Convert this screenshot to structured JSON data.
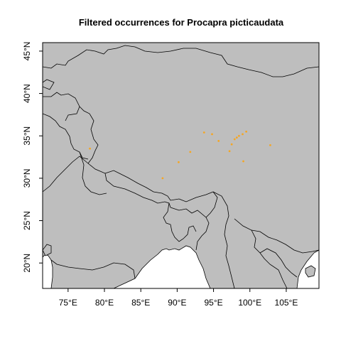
{
  "title": "Filtered occurrences for Procapra picticaudata",
  "colors": {
    "land": "#bebebe",
    "sea": "#ffffff",
    "border": "#000000",
    "points": "#f5a623"
  },
  "chart_data": {
    "type": "scatter",
    "title": "Filtered occurrences for Procapra picticaudata",
    "xlabel": "",
    "ylabel": "",
    "xlim": [
      71.5,
      109.5
    ],
    "ylim": [
      17,
      46
    ],
    "x_ticks": [
      {
        "value": 75,
        "label": "75°E"
      },
      {
        "value": 80,
        "label": "80°E"
      },
      {
        "value": 85,
        "label": "85°E"
      },
      {
        "value": 90,
        "label": "90°E"
      },
      {
        "value": 95,
        "label": "95°E"
      },
      {
        "value": 100,
        "label": "100°E"
      },
      {
        "value": 105,
        "label": "105°E"
      }
    ],
    "y_ticks": [
      {
        "value": 20,
        "label": "20°N"
      },
      {
        "value": 25,
        "label": "25°N"
      },
      {
        "value": 30,
        "label": "30°N"
      },
      {
        "value": 35,
        "label": "35°N"
      },
      {
        "value": 40,
        "label": "40°N"
      },
      {
        "value": 45,
        "label": "45°N"
      }
    ],
    "points": [
      {
        "lon": 78.0,
        "lat": 33.5
      },
      {
        "lon": 88.0,
        "lat": 30.0
      },
      {
        "lon": 90.2,
        "lat": 31.9
      },
      {
        "lon": 91.8,
        "lat": 33.1
      },
      {
        "lon": 93.7,
        "lat": 35.4
      },
      {
        "lon": 94.8,
        "lat": 35.2
      },
      {
        "lon": 95.7,
        "lat": 34.4
      },
      {
        "lon": 97.2,
        "lat": 33.2
      },
      {
        "lon": 97.5,
        "lat": 34.0
      },
      {
        "lon": 97.9,
        "lat": 34.6
      },
      {
        "lon": 98.2,
        "lat": 34.8
      },
      {
        "lon": 98.5,
        "lat": 35.0
      },
      {
        "lon": 99.0,
        "lat": 35.2
      },
      {
        "lon": 99.5,
        "lat": 35.5
      },
      {
        "lon": 99.1,
        "lat": 32.0
      },
      {
        "lon": 102.8,
        "lat": 33.9
      }
    ]
  }
}
